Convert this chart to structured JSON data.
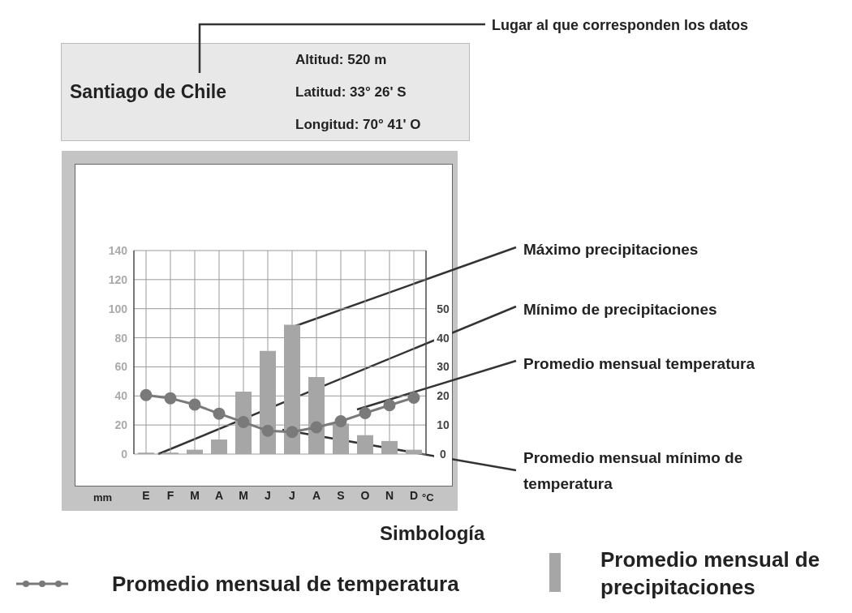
{
  "chart_data": {
    "type": "bar",
    "title": "Santiago de Chile",
    "annotations": [
      "Lugar al que corresponden los datos",
      "Altitud: 520 m",
      "Latitud: 33° 26' S",
      "Longitud:  70° 41' O",
      "Máximo precipitaciones",
      "Mínimo de precipitaciones",
      "Promedio mensual temperatura",
      "Promedio mensual mínimo de temperatura"
    ],
    "categories": [
      "E",
      "F",
      "M",
      "A",
      "M",
      "J",
      "J",
      "A",
      "S",
      "O",
      "N",
      "D"
    ],
    "series": [
      {
        "name": "Promedio mensual de temperatura",
        "type": "line",
        "axis": "y2",
        "color": "#7a7a7a",
        "values": [
          20.3,
          19.2,
          17,
          13.9,
          11,
          8,
          7.6,
          9.2,
          11.3,
          14.1,
          16.8,
          19.4
        ]
      },
      {
        "name": "Promedio mensual de precipitaciones",
        "color": "#a6a6a6",
        "values": [
          1,
          1,
          3,
          10,
          43,
          71,
          89,
          53,
          21,
          13,
          9,
          3
        ]
      }
    ],
    "ylabel": "mm",
    "y2label": "°C",
    "ylim": [
      0,
      140
    ],
    "yticks": [
      0,
      20,
      40,
      60,
      80,
      100,
      120,
      140
    ],
    "y2lim": [
      0,
      70
    ],
    "y2ticks": [
      0,
      10,
      20,
      30,
      40,
      50
    ],
    "grid": true,
    "marker": "circle",
    "line_style": "solid",
    "legend": "bottom",
    "legend_title": "Simbología"
  }
}
